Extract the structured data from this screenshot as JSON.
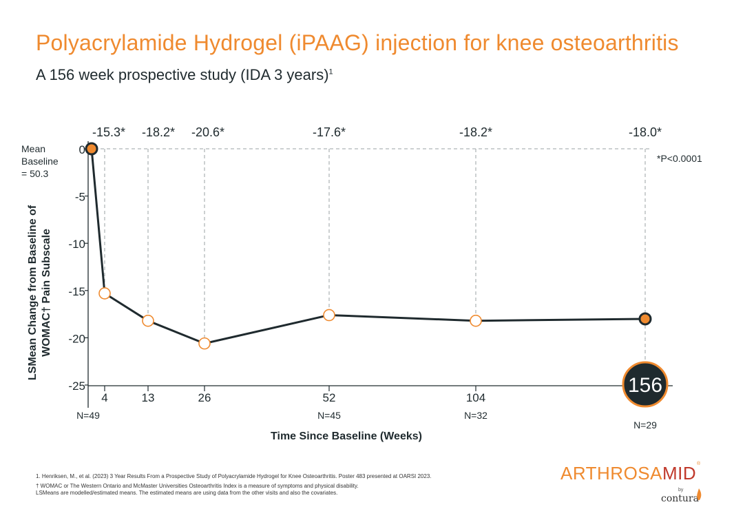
{
  "header": {
    "title": "Polyacrylamide Hydrogel (iPAAG) injection for knee osteoarthritis",
    "subtitle": "A 156 week prospective study (IDA 3 years)",
    "subtitle_sup": "1"
  },
  "chart_data": {
    "type": "line",
    "xlabel": "Time Since Baseline (Weeks)",
    "ylabel_line1": "LSMean Change from Baseline of",
    "ylabel_line2": "WOMAC† Pain Subscale",
    "ylim": [
      -25,
      0
    ],
    "yticks": [
      "0",
      "-5",
      "-10",
      "-15",
      "-20",
      "-25"
    ],
    "ytick_values": [
      0,
      -5,
      -10,
      -15,
      -20,
      -25
    ],
    "series": [
      {
        "name": "iPAAG",
        "x": [
          0,
          4,
          13,
          26,
          52,
          104,
          156
        ],
        "y": [
          0,
          -15.3,
          -18.2,
          -20.6,
          -17.6,
          -18.2,
          -18.0
        ]
      }
    ],
    "xticks": [
      "4",
      "13",
      "26",
      "52",
      "104",
      "156"
    ],
    "xtick_values": [
      4,
      13,
      26,
      52,
      104,
      156
    ],
    "point_labels": [
      "-15.3*",
      "-18.2*",
      "-20.6*",
      "-17.6*",
      "-18.2*",
      "-18.0*"
    ],
    "n_labels": [
      "N=49",
      "N=45",
      "N=32",
      "N=29"
    ],
    "baseline_label": [
      "Mean",
      "Baseline",
      "= 50.3"
    ],
    "significance": "*P<0.0001",
    "colors": {
      "line": "#1f2a2e",
      "accent": "#ef8a2f",
      "grid": "#9aa0a3"
    }
  },
  "footnotes": {
    "ref": "1. Henriksen, M., et al. (2023) 3 Year Results From a Prospective Study of Polyacrylamide Hydrogel for Knee Osteoarthritis. Poster 483 presented at OARSI 2023.",
    "womac": "† WOMAC or The Western Ontario and McMaster Universities Osteoarthritis Index is a measure of symptoms and physical disability.",
    "lsmeans": "LSMeans are modelled/estimated means. The estimated means are using data from the other visits and also the covariates."
  },
  "logo": {
    "part1": "ARTHROSA",
    "part2": "MID",
    "reg": "®",
    "by": "by",
    "company": "contura"
  }
}
